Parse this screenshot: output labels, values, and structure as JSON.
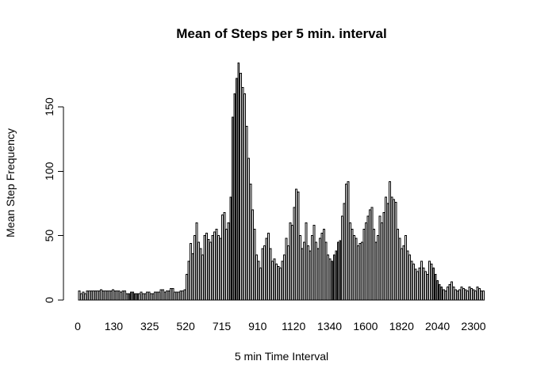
{
  "chart_data": {
    "type": "bar",
    "title": "Mean of Steps per 5 min. interval",
    "xlabel": "5 min Time Interval",
    "ylabel": "Mean Step Frequency",
    "ylim": [
      0,
      185
    ],
    "yticks": [
      0,
      50,
      100,
      150
    ],
    "x_tick_labels": [
      "0",
      "130",
      "325",
      "520",
      "715",
      "910",
      "1120",
      "1340",
      "1600",
      "1820",
      "2040",
      "2300"
    ],
    "grid": false,
    "legend": "none",
    "bar_color": "#ffffff",
    "bar_border_color": "#000000",
    "values": [
      7,
      5,
      6,
      5,
      7,
      7,
      7,
      7,
      7,
      7,
      7,
      8,
      7,
      7,
      7,
      7,
      7,
      8,
      7,
      7,
      7,
      6,
      7,
      7,
      5,
      5,
      6,
      6,
      5,
      5,
      5,
      6,
      5,
      5,
      6,
      6,
      5,
      5,
      6,
      6,
      6,
      8,
      8,
      6,
      7,
      7,
      9,
      9,
      6,
      6,
      6,
      7,
      7,
      8,
      20,
      30,
      44,
      36,
      50,
      60,
      45,
      40,
      35,
      50,
      52,
      47,
      45,
      50,
      53,
      55,
      50,
      48,
      66,
      68,
      55,
      60,
      80,
      142,
      160,
      172,
      184,
      176,
      165,
      160,
      135,
      110,
      90,
      70,
      55,
      35,
      30,
      25,
      40,
      42,
      48,
      52,
      40,
      30,
      32,
      28,
      26,
      25,
      30,
      35,
      48,
      42,
      60,
      58,
      72,
      86,
      84,
      50,
      40,
      45,
      60,
      42,
      38,
      50,
      58,
      45,
      40,
      48,
      52,
      55,
      45,
      35,
      32,
      30,
      35,
      38,
      45,
      46,
      65,
      75,
      90,
      92,
      60,
      55,
      50,
      48,
      42,
      44,
      45,
      55,
      60,
      65,
      70,
      72,
      55,
      45,
      50,
      65,
      60,
      68,
      80,
      75,
      92,
      80,
      78,
      76,
      55,
      48,
      40,
      42,
      50,
      38,
      35,
      30,
      28,
      24,
      22,
      25,
      30,
      25,
      22,
      20,
      30,
      28,
      25,
      20,
      15,
      12,
      10,
      8,
      7,
      10,
      12,
      14,
      10,
      8,
      7,
      8,
      10,
      9,
      8,
      7,
      10,
      9,
      8,
      7,
      10,
      9,
      7,
      7
    ]
  }
}
